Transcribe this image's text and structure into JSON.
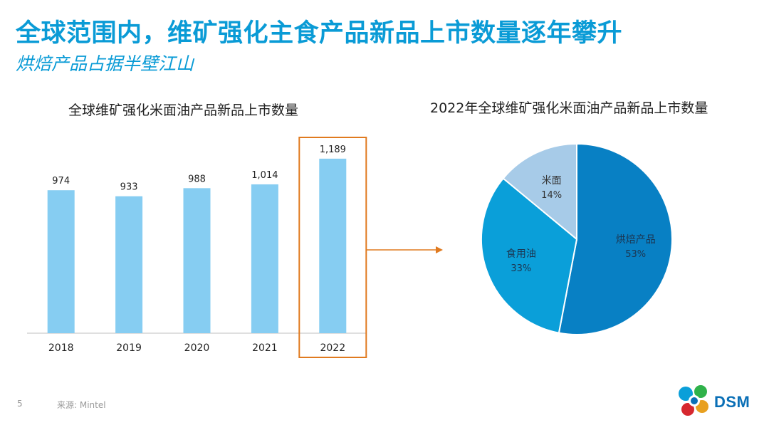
{
  "slide": {
    "title": "全球范围内，维矿强化主食产品新品上市数量逐年攀升",
    "subtitle": "烘焙产品占据半壁江山",
    "page_number": "5",
    "source": "来源: Mintel",
    "logo_text": "DSM"
  },
  "colors": {
    "accent": "#0a9bd6",
    "bar": "#86cdf2",
    "highlight_box": "#e07a1f",
    "pie_baking": "#0880c4",
    "pie_oil": "#0a9fd9",
    "pie_rice_noodle": "#a7cbe8"
  },
  "chart_data": [
    {
      "type": "bar",
      "title": "全球维矿强化米面油产品新品上市数量",
      "categories": [
        "2018",
        "2019",
        "2020",
        "2021",
        "2022"
      ],
      "values": [
        974,
        933,
        988,
        1014,
        1189
      ],
      "value_labels": [
        "974",
        "933",
        "988",
        "1,014",
        "1,189"
      ],
      "ylim": [
        0,
        1300
      ],
      "highlighted_category": "2022",
      "grid": false
    },
    {
      "type": "pie",
      "title": "2022年全球维矿强化米面油产品新品上市数量",
      "slices": [
        {
          "label": "烘焙产品",
          "value": 53,
          "value_label": "53%"
        },
        {
          "label": "食用油",
          "value": 33,
          "value_label": "33%"
        },
        {
          "label": "米面",
          "value": 14,
          "value_label": "14%"
        }
      ]
    }
  ]
}
